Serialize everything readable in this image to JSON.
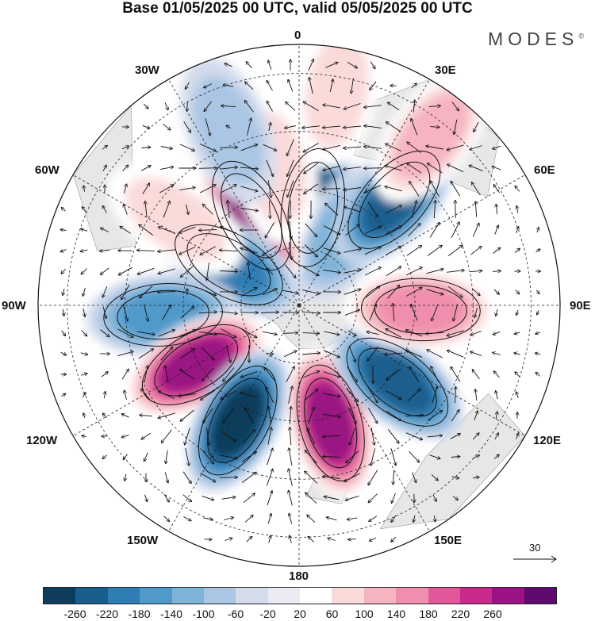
{
  "title": "Base 01/05/2025 00 UTC, valid 05/05/2025 00 UTC",
  "brand": "MODES",
  "brand_mark": "©",
  "labels": {
    "n0": "0",
    "e30": "30E",
    "e60": "60E",
    "e90": "90E",
    "e120": "120E",
    "e150": "150E",
    "s180": "180",
    "w150": "150W",
    "w120": "120W",
    "w90": "90W",
    "w60": "60W",
    "w30": "30W"
  },
  "reference_vector": "30",
  "colorbar": {
    "colors": [
      "#0d3c5c",
      "#1a5e8e",
      "#2e7db4",
      "#4f9acb",
      "#7eb4d8",
      "#aac6e4",
      "#d4dcec",
      "#ecebf3",
      "#ffffff",
      "#fbdada",
      "#f6b4c0",
      "#f08fad",
      "#e1579a",
      "#c92a8c",
      "#9a1283",
      "#5e0a70"
    ],
    "tick_labels": [
      "-260",
      "-220",
      "-180",
      "-140",
      "-100",
      "-60",
      "-20",
      "20",
      "60",
      "100",
      "140",
      "180",
      "220",
      "260"
    ]
  },
  "anomalies": [
    {
      "lon": 8,
      "colat": 34,
      "v": -200
    },
    {
      "lon": 32,
      "colat": 30,
      "v": -80
    },
    {
      "lon": 42,
      "colat": 49,
      "v": -200
    },
    {
      "lon": 332,
      "colat": 35,
      "v": 240
    },
    {
      "lon": 350,
      "colat": 48,
      "v": 40
    },
    {
      "lon": 300,
      "colat": 28,
      "v": -180
    },
    {
      "lon": 305,
      "colat": 52,
      "v": 70
    },
    {
      "lon": 266,
      "colat": 47,
      "v": -130
    },
    {
      "lon": 240,
      "colat": 41,
      "v": 250
    },
    {
      "lon": 208,
      "colat": 45,
      "v": -250
    },
    {
      "lon": 165,
      "colat": 42,
      "v": 250
    },
    {
      "lon": 128,
      "colat": 43,
      "v": -200
    },
    {
      "lon": 92,
      "colat": 42,
      "v": 130
    },
    {
      "lon": 38,
      "colat": 74,
      "v": 90
    },
    {
      "lon": 10,
      "colat": 75,
      "v": 60
    },
    {
      "lon": 338,
      "colat": 65,
      "v": -70
    }
  ]
}
